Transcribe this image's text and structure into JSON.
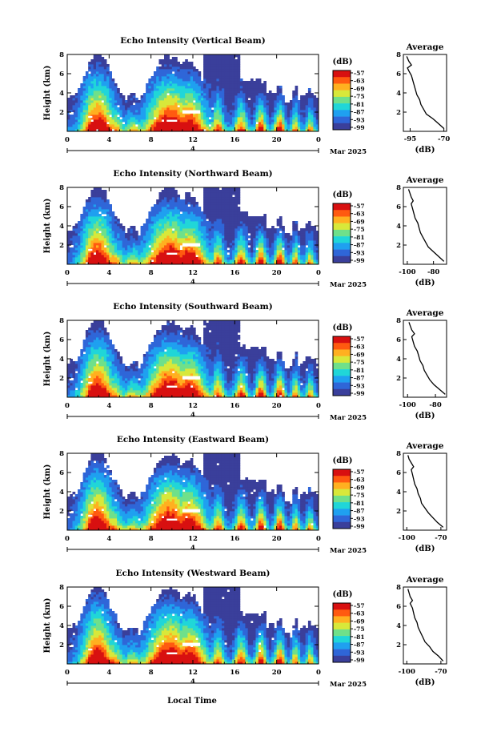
{
  "figure": {
    "xlabel_bottom": "Local Time",
    "date_label": "Mar 2025",
    "date_day": "4"
  },
  "chart_data": [
    {
      "type": "heatmap",
      "title": "Echo Intensity (Vertical Beam)",
      "ylabel": "Height (km)",
      "x_ticks": [
        "0",
        "4",
        "8",
        "12",
        "16",
        "20",
        "0"
      ],
      "y_ticks": [
        "2",
        "4",
        "6",
        "8"
      ],
      "xlim": [
        0,
        24
      ],
      "ylim": [
        0,
        8
      ],
      "colorbar": {
        "label": "(dB)",
        "ticks": [
          "-57",
          "-63",
          "-69",
          "-75",
          "-81",
          "-87",
          "-93",
          "-99"
        ],
        "range": [
          -99,
          -57
        ]
      },
      "colors": [
        "#3a3f9b",
        "#2f66d8",
        "#1fa0f0",
        "#20d6d8",
        "#6fe08a",
        "#d8e83a",
        "#ffb020",
        "#ff5a10",
        "#d81010"
      ],
      "average": {
        "title": "Average",
        "xlabel": "(dB)",
        "x_ticks": [
          "-95",
          "-70"
        ],
        "y_ticks": [
          "2",
          "4",
          "6",
          "8"
        ],
        "xlim": [
          -100,
          -68
        ],
        "ylim": [
          0,
          8
        ],
        "profile": [
          [
            0.3,
            -70
          ],
          [
            0.8,
            -74
          ],
          [
            1.3,
            -78
          ],
          [
            1.8,
            -83
          ],
          [
            2.3,
            -85
          ],
          [
            2.8,
            -87
          ],
          [
            3.3,
            -88
          ],
          [
            3.8,
            -90
          ],
          [
            4.3,
            -91
          ],
          [
            4.8,
            -92
          ],
          [
            5.3,
            -93
          ],
          [
            5.8,
            -94
          ],
          [
            6.3,
            -96
          ],
          [
            6.6,
            -97
          ],
          [
            6.9,
            -94
          ],
          [
            7.3,
            -96
          ],
          [
            7.8,
            -97.5
          ]
        ]
      }
    },
    {
      "type": "heatmap",
      "title": "Echo Intensity (Northward Beam)",
      "ylabel": "Height (km)",
      "x_ticks": [
        "0",
        "4",
        "8",
        "12",
        "16",
        "20",
        "0"
      ],
      "y_ticks": [
        "2",
        "4",
        "6",
        "8"
      ],
      "xlim": [
        0,
        24
      ],
      "ylim": [
        0,
        8
      ],
      "colorbar": {
        "label": "(dB)",
        "ticks": [
          "-57",
          "-63",
          "-69",
          "-75",
          "-81",
          "-87",
          "-93",
          "-99"
        ],
        "range": [
          -99,
          -57
        ]
      },
      "colors": [
        "#3a3f9b",
        "#2f66d8",
        "#1fa0f0",
        "#20d6d8",
        "#6fe08a",
        "#d8e83a",
        "#ffb020",
        "#ff5a10",
        "#d81010"
      ],
      "average": {
        "title": "Average",
        "xlabel": "(dB)",
        "x_ticks": [
          "-100",
          "-80"
        ],
        "y_ticks": [
          "2",
          "4",
          "6",
          "8"
        ],
        "xlim": [
          -103,
          -70
        ],
        "ylim": [
          0,
          8
        ],
        "profile": [
          [
            0.3,
            -72
          ],
          [
            0.8,
            -76
          ],
          [
            1.3,
            -80
          ],
          [
            1.8,
            -84
          ],
          [
            2.3,
            -86
          ],
          [
            2.8,
            -88
          ],
          [
            3.3,
            -90
          ],
          [
            3.8,
            -91
          ],
          [
            4.3,
            -92
          ],
          [
            4.8,
            -94
          ],
          [
            5.3,
            -95
          ],
          [
            5.8,
            -96
          ],
          [
            6.3,
            -97
          ],
          [
            6.6,
            -95.5
          ],
          [
            7.0,
            -97
          ],
          [
            7.4,
            -98
          ],
          [
            7.8,
            -99
          ]
        ]
      }
    },
    {
      "type": "heatmap",
      "title": "Echo Intensity (Southward Beam)",
      "ylabel": "Height (km)",
      "x_ticks": [
        "0",
        "4",
        "8",
        "12",
        "16",
        "20",
        "0"
      ],
      "y_ticks": [
        "2",
        "4",
        "6",
        "8"
      ],
      "xlim": [
        0,
        24
      ],
      "ylim": [
        0,
        8
      ],
      "colorbar": {
        "label": "(dB)",
        "ticks": [
          "-57",
          "-63",
          "-69",
          "-75",
          "-81",
          "-87",
          "-93",
          "-99"
        ],
        "range": [
          -99,
          -57
        ]
      },
      "colors": [
        "#3a3f9b",
        "#2f66d8",
        "#1fa0f0",
        "#20d6d8",
        "#6fe08a",
        "#d8e83a",
        "#ffb020",
        "#ff5a10",
        "#d81010"
      ],
      "average": {
        "title": "Average",
        "xlabel": "(dB)",
        "x_ticks": [
          "-100",
          "-80"
        ],
        "y_ticks": [
          "2",
          "4",
          "6",
          "8"
        ],
        "xlim": [
          -103,
          -72
        ],
        "ylim": [
          0,
          8
        ],
        "profile": [
          [
            0.3,
            -73
          ],
          [
            0.8,
            -77
          ],
          [
            1.3,
            -81
          ],
          [
            1.8,
            -84
          ],
          [
            2.3,
            -86
          ],
          [
            2.8,
            -88
          ],
          [
            3.3,
            -89
          ],
          [
            3.8,
            -91
          ],
          [
            4.3,
            -92
          ],
          [
            4.8,
            -93
          ],
          [
            5.3,
            -95
          ],
          [
            5.8,
            -96
          ],
          [
            6.3,
            -97
          ],
          [
            6.6,
            -95
          ],
          [
            7.0,
            -97
          ],
          [
            7.4,
            -98
          ],
          [
            7.8,
            -99
          ]
        ]
      }
    },
    {
      "type": "heatmap",
      "title": "Echo Intensity (Eastward Beam)",
      "ylabel": "Height (km)",
      "x_ticks": [
        "0",
        "4",
        "8",
        "12",
        "16",
        "20",
        "0"
      ],
      "y_ticks": [
        "2",
        "4",
        "6",
        "8"
      ],
      "xlim": [
        0,
        24
      ],
      "ylim": [
        0,
        8
      ],
      "colorbar": {
        "label": "(dB)",
        "ticks": [
          "-57",
          "-63",
          "-69",
          "-75",
          "-81",
          "-87",
          "-93",
          "-99"
        ],
        "range": [
          -99,
          -57
        ]
      },
      "colors": [
        "#3a3f9b",
        "#2f66d8",
        "#1fa0f0",
        "#20d6d8",
        "#6fe08a",
        "#d8e83a",
        "#ffb020",
        "#ff5a10",
        "#d81010"
      ],
      "average": {
        "title": "Average",
        "xlabel": "(dB)",
        "x_ticks": [
          "-100",
          "-70"
        ],
        "y_ticks": [
          "2",
          "4",
          "6",
          "8"
        ],
        "xlim": [
          -103,
          -65
        ],
        "ylim": [
          0,
          8
        ],
        "profile": [
          [
            0.3,
            -68
          ],
          [
            0.8,
            -73
          ],
          [
            1.3,
            -77
          ],
          [
            1.8,
            -81
          ],
          [
            2.3,
            -84
          ],
          [
            2.8,
            -87
          ],
          [
            3.3,
            -88
          ],
          [
            3.8,
            -90
          ],
          [
            4.3,
            -91
          ],
          [
            4.8,
            -93
          ],
          [
            5.3,
            -94
          ],
          [
            5.8,
            -95
          ],
          [
            6.3,
            -96
          ],
          [
            6.6,
            -94
          ],
          [
            7.0,
            -96
          ],
          [
            7.4,
            -98
          ],
          [
            7.8,
            -99
          ]
        ]
      }
    },
    {
      "type": "heatmap",
      "title": "Echo Intensity (Westward Beam)",
      "ylabel": "Height (km)",
      "x_ticks": [
        "0",
        "4",
        "8",
        "12",
        "16",
        "20",
        "0"
      ],
      "y_ticks": [
        "2",
        "4",
        "6",
        "8"
      ],
      "xlim": [
        0,
        24
      ],
      "ylim": [
        0,
        8
      ],
      "colorbar": {
        "label": "(dB)",
        "ticks": [
          "-57",
          "-63",
          "-69",
          "-75",
          "-81",
          "-87",
          "-93",
          "-99"
        ],
        "range": [
          -99,
          -57
        ]
      },
      "colors": [
        "#3a3f9b",
        "#2f66d8",
        "#1fa0f0",
        "#20d6d8",
        "#6fe08a",
        "#d8e83a",
        "#ffb020",
        "#ff5a10",
        "#d81010"
      ],
      "average": {
        "title": "Average",
        "xlabel": "(dB)",
        "x_ticks": [
          "-100",
          "-70"
        ],
        "y_ticks": [
          "2",
          "4",
          "6",
          "8"
        ],
        "xlim": [
          -103,
          -65
        ],
        "ylim": [
          0,
          8
        ],
        "profile": [
          [
            0.3,
            -68
          ],
          [
            0.8,
            -72
          ],
          [
            1.3,
            -77
          ],
          [
            1.8,
            -80
          ],
          [
            2.3,
            -84
          ],
          [
            2.8,
            -86
          ],
          [
            3.3,
            -88
          ],
          [
            3.8,
            -90
          ],
          [
            4.3,
            -91
          ],
          [
            4.8,
            -93
          ],
          [
            5.3,
            -94
          ],
          [
            5.8,
            -95
          ],
          [
            6.3,
            -97
          ],
          [
            6.6,
            -95
          ],
          [
            7.0,
            -97
          ],
          [
            7.4,
            -98
          ],
          [
            7.8,
            -99
          ]
        ]
      }
    }
  ]
}
